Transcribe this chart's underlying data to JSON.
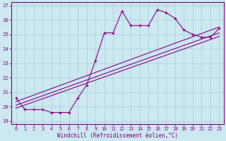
{
  "xlabel": "Windchill (Refroidissement éolien,°C)",
  "x_ticks": [
    0,
    1,
    2,
    3,
    4,
    5,
    6,
    7,
    8,
    9,
    10,
    11,
    12,
    13,
    14,
    15,
    16,
    17,
    18,
    19,
    20,
    21,
    22,
    23
  ],
  "y_ticks": [
    19,
    20,
    21,
    22,
    23,
    24,
    25,
    26,
    27
  ],
  "ylim": [
    18.8,
    27.2
  ],
  "xlim": [
    -0.5,
    23.5
  ],
  "line_color": "#880088",
  "bg_color": "#cce8f0",
  "grid_color": "#aaccd8",
  "main_line_x": [
    0,
    1,
    2,
    3,
    4,
    5,
    6,
    7,
    8,
    9,
    10,
    11,
    12,
    13,
    14,
    15,
    16,
    17,
    18,
    19,
    20,
    21,
    22,
    23
  ],
  "main_line_y": [
    20.6,
    19.8,
    19.8,
    19.8,
    19.6,
    19.6,
    19.6,
    20.6,
    21.5,
    23.2,
    25.1,
    25.1,
    26.6,
    25.6,
    25.6,
    25.6,
    26.7,
    26.5,
    26.1,
    25.3,
    25.0,
    24.8,
    24.8,
    25.4
  ],
  "line2_x": [
    0,
    23
  ],
  "line2_y": [
    20.1,
    25.1
  ],
  "line3_x": [
    0,
    23
  ],
  "line3_y": [
    19.9,
    24.85
  ],
  "line4_x": [
    0,
    23
  ],
  "line4_y": [
    20.35,
    25.5
  ]
}
